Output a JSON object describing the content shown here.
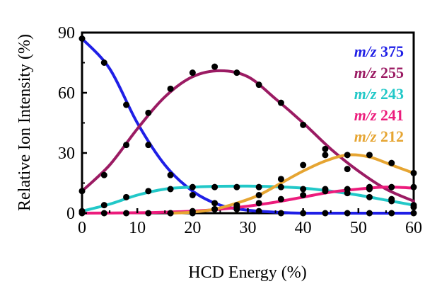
{
  "chart_data": {
    "type": "scatter",
    "xlabel": "HCD Energy (%)",
    "ylabel": "Relative Ion Intensity (%)",
    "xlim": [
      0,
      60
    ],
    "ylim": [
      0,
      90
    ],
    "xticks": [
      0,
      10,
      20,
      30,
      40,
      50,
      60
    ],
    "yticks": [
      0,
      30,
      60,
      90
    ],
    "grid": false,
    "legend_position": "top-right",
    "series": [
      {
        "name": "m/z 375",
        "prefix": "m/z",
        "mz": "375",
        "color": "#1f1fe6",
        "points": [
          [
            0,
            87
          ],
          [
            4,
            75
          ],
          [
            8,
            54
          ],
          [
            12,
            34
          ],
          [
            16,
            19
          ],
          [
            20,
            9
          ],
          [
            24,
            5
          ],
          [
            28,
            2
          ],
          [
            32,
            1
          ],
          [
            36,
            0
          ],
          [
            40,
            0
          ],
          [
            44,
            0
          ],
          [
            48,
            0
          ],
          [
            52,
            0
          ],
          [
            56,
            0
          ],
          [
            60,
            0
          ]
        ],
        "fit": [
          [
            0,
            87
          ],
          [
            5,
            72
          ],
          [
            10,
            45
          ],
          [
            15,
            24
          ],
          [
            20,
            11
          ],
          [
            25,
            4
          ],
          [
            30,
            1.5
          ],
          [
            35,
            0.5
          ],
          [
            40,
            0
          ],
          [
            50,
            0
          ],
          [
            60,
            0
          ]
        ]
      },
      {
        "name": "m/z 255",
        "prefix": "m/z",
        "mz": "255",
        "color": "#9b1b63",
        "points": [
          [
            0,
            11
          ],
          [
            4,
            19
          ],
          [
            8,
            34
          ],
          [
            12,
            50
          ],
          [
            16,
            62
          ],
          [
            20,
            70
          ],
          [
            24,
            73
          ],
          [
            28,
            70
          ],
          [
            32,
            64
          ],
          [
            36,
            55
          ],
          [
            40,
            44
          ],
          [
            44,
            32
          ],
          [
            48,
            22
          ],
          [
            52,
            13
          ],
          [
            56,
            7
          ],
          [
            60,
            3
          ]
        ],
        "fit": [
          [
            0,
            11
          ],
          [
            5,
            24
          ],
          [
            10,
            42
          ],
          [
            15,
            58
          ],
          [
            20,
            68
          ],
          [
            25,
            71
          ],
          [
            30,
            68
          ],
          [
            35,
            57
          ],
          [
            40,
            45
          ],
          [
            45,
            32
          ],
          [
            50,
            21
          ],
          [
            55,
            12
          ],
          [
            60,
            6
          ]
        ]
      },
      {
        "name": "m/z 243",
        "prefix": "m/z",
        "mz": "243",
        "color": "#22c8c8",
        "points": [
          [
            0,
            1
          ],
          [
            4,
            4
          ],
          [
            8,
            8
          ],
          [
            12,
            11
          ],
          [
            16,
            12
          ],
          [
            20,
            13
          ],
          [
            24,
            13
          ],
          [
            28,
            13
          ],
          [
            32,
            13
          ],
          [
            36,
            13
          ],
          [
            40,
            12
          ],
          [
            44,
            12
          ],
          [
            48,
            10
          ],
          [
            52,
            8
          ],
          [
            56,
            6
          ],
          [
            60,
            4
          ]
        ],
        "fit": [
          [
            0,
            1
          ],
          [
            5,
            4.5
          ],
          [
            10,
            9
          ],
          [
            15,
            12
          ],
          [
            20,
            13
          ],
          [
            25,
            13.4
          ],
          [
            30,
            13.5
          ],
          [
            35,
            13.2
          ],
          [
            40,
            12.5
          ],
          [
            45,
            11
          ],
          [
            50,
            9
          ],
          [
            55,
            6.5
          ],
          [
            60,
            4
          ]
        ]
      },
      {
        "name": "m/z 241",
        "prefix": "m/z",
        "mz": "241",
        "color": "#ec1c7c",
        "points": [
          [
            0,
            0
          ],
          [
            4,
            0
          ],
          [
            8,
            0
          ],
          [
            12,
            0
          ],
          [
            16,
            0
          ],
          [
            20,
            1
          ],
          [
            24,
            2
          ],
          [
            28,
            3
          ],
          [
            32,
            5
          ],
          [
            36,
            7
          ],
          [
            40,
            9
          ],
          [
            44,
            11
          ],
          [
            48,
            12
          ],
          [
            52,
            12
          ],
          [
            56,
            13
          ],
          [
            60,
            13
          ]
        ],
        "fit": [
          [
            0,
            0
          ],
          [
            10,
            0.2
          ],
          [
            15,
            0.5
          ],
          [
            20,
            1
          ],
          [
            25,
            2
          ],
          [
            30,
            3.5
          ],
          [
            35,
            5.5
          ],
          [
            40,
            8
          ],
          [
            45,
            10.5
          ],
          [
            50,
            12
          ],
          [
            55,
            13
          ],
          [
            60,
            12.5
          ]
        ]
      },
      {
        "name": "m/z 212",
        "prefix": "m/z",
        "mz": "212",
        "color": "#e6a532",
        "points": [
          [
            16,
            0
          ],
          [
            20,
            0
          ],
          [
            24,
            2
          ],
          [
            28,
            4
          ],
          [
            32,
            9
          ],
          [
            36,
            17
          ],
          [
            40,
            24
          ],
          [
            44,
            29
          ],
          [
            48,
            29
          ],
          [
            52,
            29
          ],
          [
            56,
            25
          ],
          [
            60,
            20
          ]
        ],
        "fit": [
          [
            16,
            0
          ],
          [
            20,
            0.5
          ],
          [
            24,
            2
          ],
          [
            28,
            5
          ],
          [
            32,
            9
          ],
          [
            36,
            15
          ],
          [
            40,
            21
          ],
          [
            44,
            26
          ],
          [
            48,
            29
          ],
          [
            52,
            28
          ],
          [
            56,
            24
          ],
          [
            60,
            20
          ]
        ]
      }
    ]
  }
}
